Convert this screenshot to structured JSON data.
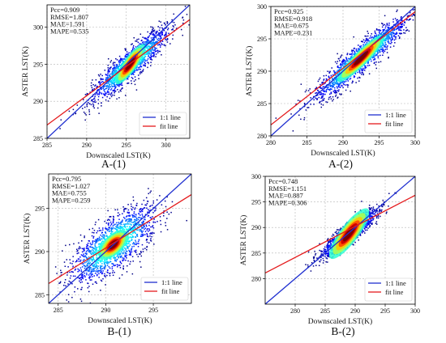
{
  "colors": {
    "one_to_one_line": "#1f2fd0",
    "fit_line": "#e41a1c",
    "grid": "#b5b5b5",
    "density_low": "#1a1ac8",
    "density_high": "#7a0000"
  },
  "chart_data": [
    {
      "type": "scatter",
      "caption": "A-(1)",
      "xlabel": "Downscaled LST(K)",
      "ylabel": "ASTER LST(K)",
      "xlim": [
        285,
        303
      ],
      "ylim": [
        285,
        303
      ],
      "xticks": [
        285,
        290,
        295,
        300
      ],
      "yticks": [
        285,
        290,
        295,
        300
      ],
      "grid": true,
      "stats": [
        "Pcc=0.909",
        "RMSE=1.807",
        "MAE=1.591",
        "MAPE=0.535"
      ],
      "legend": {
        "position": "bottom-right",
        "items": [
          "1:1 line",
          "fit line"
        ]
      },
      "series": [
        {
          "name": "1:1 line",
          "kind": "line",
          "x": [
            285,
            303
          ],
          "y": [
            285,
            303
          ]
        },
        {
          "name": "fit line",
          "kind": "line",
          "x": [
            285,
            303
          ],
          "y": [
            286.8,
            301.0
          ]
        }
      ],
      "density": {
        "center": [
          295.5,
          295.0
        ],
        "spread_along": 3.3,
        "spread_across": 0.75,
        "core_along": 1.0,
        "core_across": 0.28,
        "core_angle_deg": 10,
        "count": 1500
      }
    },
    {
      "type": "scatter",
      "caption": "A-(2)",
      "xlabel": "Downscaled LST(K)",
      "ylabel": "ASTER LST(K)",
      "xlim": [
        280,
        300
      ],
      "ylim": [
        280,
        300
      ],
      "xticks": [
        280,
        285,
        290,
        295,
        300
      ],
      "yticks": [
        280,
        285,
        290,
        295,
        300
      ],
      "grid": true,
      "stats": [
        "Pcc=0.925",
        "RMSE=0.918",
        "MAE=0.675",
        "MAPE=0.231"
      ],
      "legend": {
        "position": "bottom-right",
        "items": [
          "1:1 line",
          "fit line"
        ]
      },
      "series": [
        {
          "name": "1:1 line",
          "kind": "line",
          "x": [
            280,
            300
          ],
          "y": [
            280,
            300
          ]
        },
        {
          "name": "fit line",
          "kind": "line",
          "x": [
            280,
            300
          ],
          "y": [
            281.7,
            299.2
          ]
        }
      ],
      "density": {
        "center": [
          292.5,
          292.0
        ],
        "spread_along": 4.4,
        "spread_across": 0.85,
        "core_along": 1.5,
        "core_across": 0.32,
        "core_angle_deg": 0,
        "count": 1600
      }
    },
    {
      "type": "scatter",
      "caption": "B-(1)",
      "xlabel": "Downscaled LST(K)",
      "ylabel": "ASTER LST(K)",
      "xlim": [
        284,
        299
      ],
      "ylim": [
        284,
        299
      ],
      "xticks": [
        285,
        290,
        295
      ],
      "yticks": [
        285,
        290,
        295
      ],
      "grid": true,
      "stats": [
        "Pcc=0.795",
        "RMSE=1.027",
        "MAE=0.755",
        "MAPE=0.259"
      ],
      "legend": {
        "position": "bottom-right",
        "items": [
          "1:1 line",
          "fit line"
        ]
      },
      "series": [
        {
          "name": "1:1 line",
          "kind": "line",
          "x": [
            284,
            299
          ],
          "y": [
            284,
            299
          ]
        },
        {
          "name": "fit line",
          "kind": "line",
          "x": [
            284,
            299
          ],
          "y": [
            286.3,
            296.6
          ]
        }
      ],
      "density": {
        "center": [
          290.8,
          290.8
        ],
        "spread_along": 2.9,
        "spread_across": 1.15,
        "core_along": 0.65,
        "core_across": 0.33,
        "core_angle_deg": 0,
        "count": 1600
      }
    },
    {
      "type": "scatter",
      "caption": "B-(2)",
      "xlabel": "Downscaled LST(K)",
      "ylabel": "ASTER LST(K)",
      "xlim": [
        275,
        300
      ],
      "ylim": [
        275,
        300
      ],
      "xticks": [
        280,
        285,
        290,
        295,
        300
      ],
      "yticks": [
        280,
        285,
        290,
        295,
        300
      ],
      "grid": true,
      "stats": [
        "Pcc=0.748",
        "RMSE=1.151",
        "MAE=0.887",
        "MAPE=0.306"
      ],
      "legend": {
        "position": "bottom-right",
        "items": [
          "1:1 line",
          "fit line"
        ]
      },
      "series": [
        {
          "name": "1:1 line",
          "kind": "line",
          "x": [
            275,
            300
          ],
          "y": [
            275,
            300
          ]
        },
        {
          "name": "fit line",
          "kind": "line",
          "x": [
            275,
            300
          ],
          "y": [
            281.1,
            296.3
          ]
        }
      ],
      "density": {
        "center": [
          289.0,
          288.8
        ],
        "spread_along": 3.1,
        "spread_across": 0.7,
        "core_along": 1.7,
        "core_across": 0.5,
        "core_angle_deg": 8,
        "count": 1500
      }
    }
  ]
}
